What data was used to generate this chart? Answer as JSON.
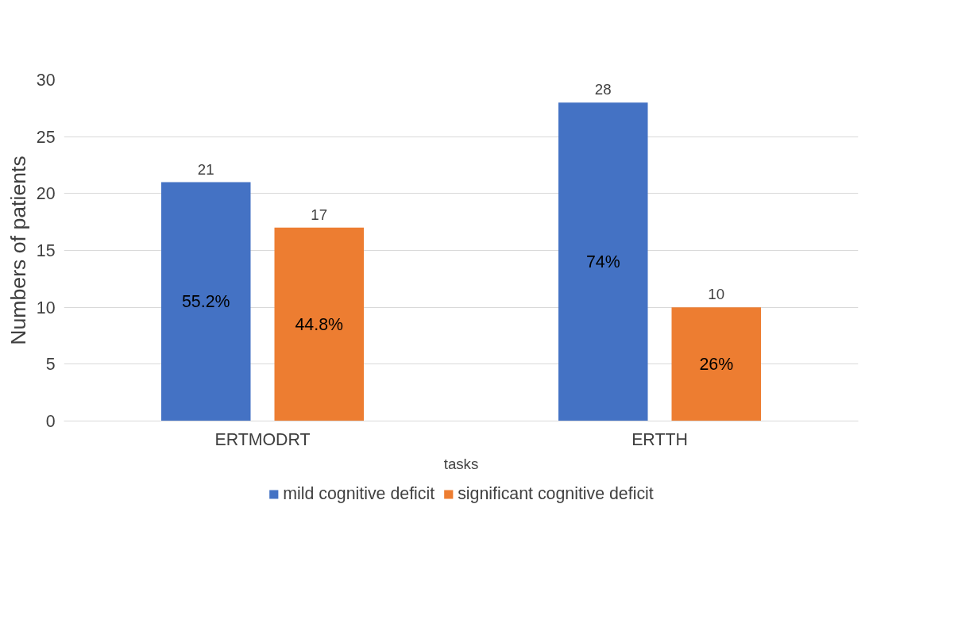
{
  "chart_data": {
    "type": "bar",
    "xlabel": "tasks",
    "ylabel": "Numbers of patients",
    "categories": [
      "ERTMODRT",
      "ERTTH"
    ],
    "series": [
      {
        "name": "mild cognitive deficit",
        "color": "#4472c4",
        "values": [
          21,
          28
        ]
      },
      {
        "name": "significant cognitive deficit",
        "color": "#ed7d31",
        "values": [
          17,
          10
        ]
      }
    ],
    "annotations": [
      "55.2%",
      "44.8%",
      "74%",
      "26%"
    ],
    "ylim": [
      0,
      30
    ],
    "yticks": [
      0,
      5,
      10,
      15,
      20,
      25,
      30
    ],
    "grid": "y",
    "legend": "bottom",
    "data_labels": true
  }
}
